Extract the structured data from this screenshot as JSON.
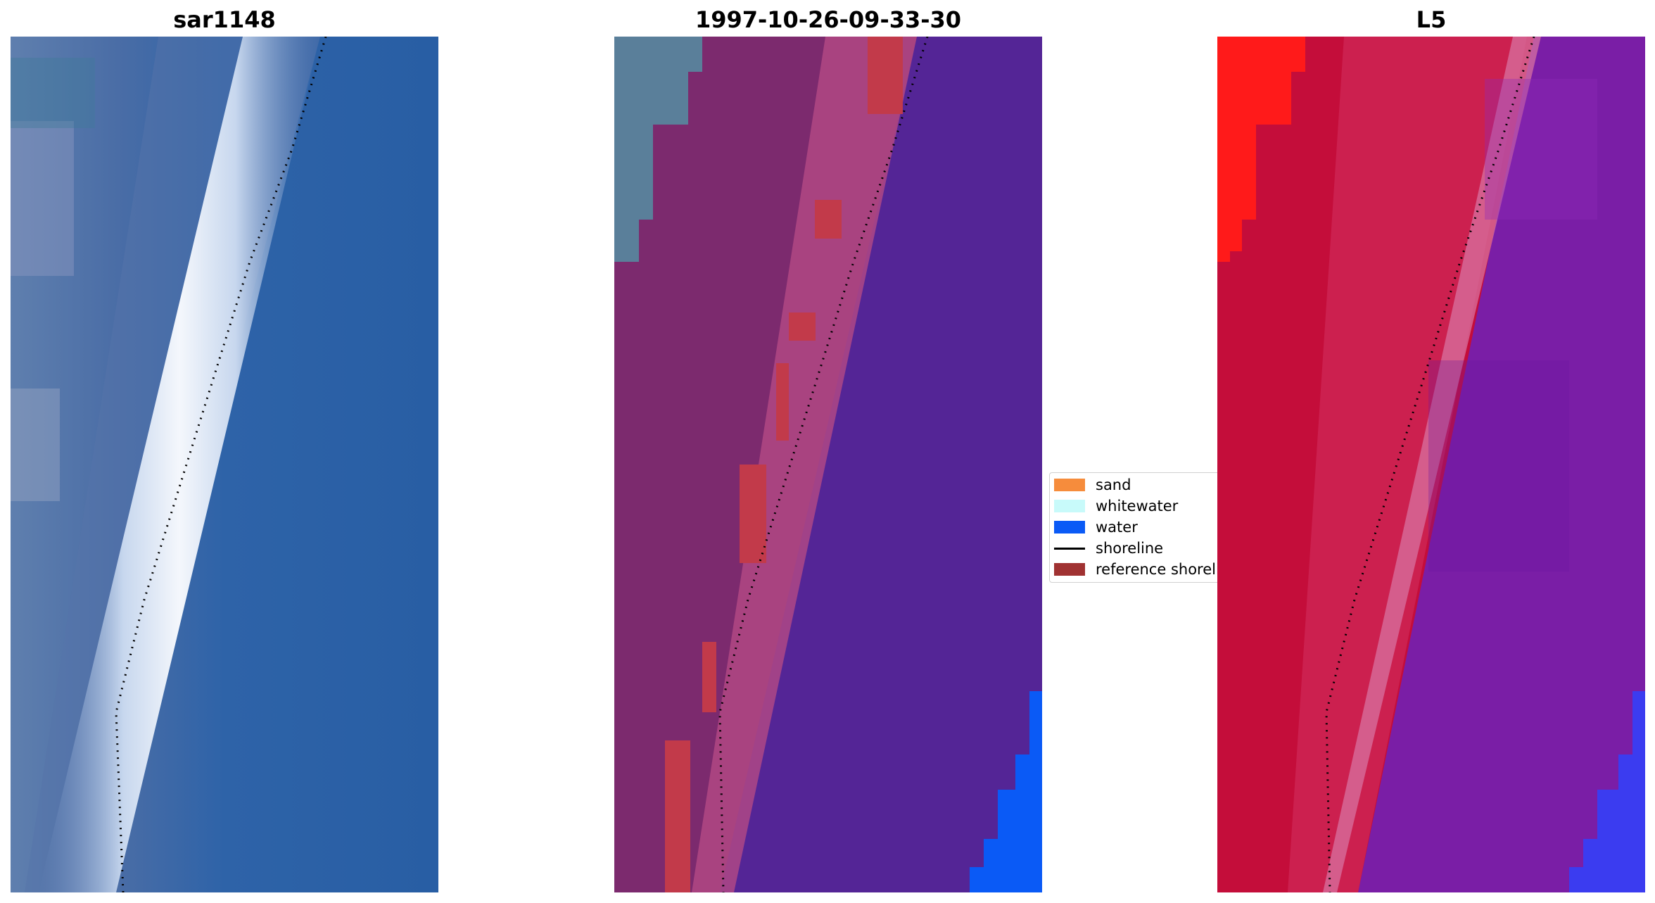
{
  "panels": [
    {
      "id": "sar",
      "title": "sar1148"
    },
    {
      "id": "classification",
      "title": "1997-10-26-09-33-30"
    },
    {
      "id": "l5",
      "title": "L5"
    }
  ],
  "legend": {
    "items": [
      {
        "label": "sand",
        "color": "#f68c3c"
      },
      {
        "label": "whitewater",
        "color": "#c8fafa"
      },
      {
        "label": "water",
        "color": "#0a5af6"
      },
      {
        "label": "shoreline",
        "color": "#000000"
      },
      {
        "label": "reference shoreline",
        "color": "#a03232"
      }
    ]
  },
  "colors": {
    "sar_water": "#2b62a6",
    "sar_surf": "#eef3fa",
    "class_purple": "#542596",
    "class_mauve": "#7c2a6e",
    "class_pink": "#b44a84",
    "class_red": "#c23a4a",
    "l5_red": "#c40d3a",
    "l5_purple": "#7a1ea6",
    "l5_blue": "#3b3cf0"
  }
}
